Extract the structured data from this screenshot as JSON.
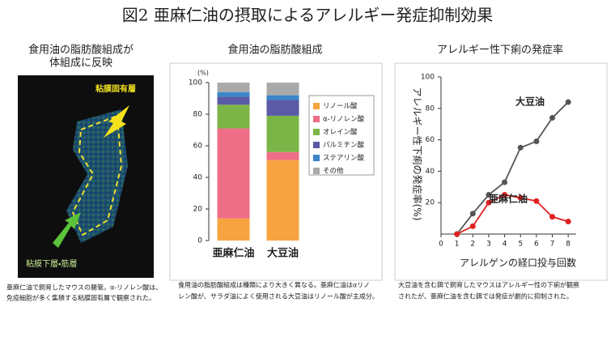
{
  "title": "図2 亜麻仁油の摂取によるアレルギー発症抑制効果",
  "photo_panel": {
    "heading": [
      "食用油の脂肪酸組成が",
      "体組成に反映"
    ],
    "label_upper": "粘膜固有層",
    "label_lower": "粘膜下層・筋層",
    "caption": [
      "亜麻仁油で飼育したマウスの腸管。α-リノレン酸は、",
      "免疫細胞が多く集積する粘膜固有層で観察された。"
    ]
  },
  "chart_data": [
    {
      "type": "bar",
      "stacked": true,
      "title": "食用油の脂肪酸組成",
      "y_unit": "(%)",
      "categories": [
        "亜麻仁油",
        "大豆油"
      ],
      "series": [
        {
          "name": "リノール酸",
          "color": "#f7a440",
          "values": [
            14,
            51
          ]
        },
        {
          "name": "α-リノレン酸",
          "color": "#ee6e88",
          "values": [
            57,
            5
          ]
        },
        {
          "name": "オレイン酸",
          "color": "#7bb547",
          "values": [
            15,
            23
          ]
        },
        {
          "name": "パルミチン酸",
          "color": "#5a5aa6",
          "values": [
            5,
            10
          ]
        },
        {
          "name": "ステアリン酸",
          "color": "#3a86c8",
          "values": [
            3,
            3
          ]
        },
        {
          "name": "その他",
          "color": "#a9a9a9",
          "values": [
            6,
            8
          ]
        }
      ],
      "ylim": [
        0,
        100
      ],
      "yticks": [
        0,
        20,
        40,
        60,
        80,
        100
      ],
      "caption": [
        "食用油の脂肪酸組成は種類により大きく異なる。亜麻仁油はαリノ",
        "レン酸が、サラダ油によく使用される大豆油はリノール酸が主成分。"
      ]
    },
    {
      "type": "line",
      "title": "アレルギー性下痢の発症率",
      "ylabel": "アレルギー性下痢の発症率(%)",
      "xlabel": "アレルゲンの経口投与回数",
      "x": [
        1,
        2,
        3,
        4,
        5,
        6,
        7,
        8
      ],
      "series": [
        {
          "name": "大豆油",
          "color": "#555555",
          "values": [
            0,
            13,
            25,
            33,
            55,
            59,
            74,
            84
          ]
        },
        {
          "name": "亜麻仁油",
          "color": "#e02222",
          "values": [
            0,
            5,
            20,
            25,
            23,
            21,
            11,
            8
          ]
        }
      ],
      "xlim": [
        0,
        8.5
      ],
      "xticks": [
        0,
        1,
        2,
        3,
        4,
        5,
        6,
        7,
        8
      ],
      "ylim": [
        0,
        100
      ],
      "yticks": [
        20,
        40,
        60,
        80,
        100
      ],
      "caption": [
        "大豆油を含む餌で飼育したマウスはアレルギー性の下痢が観察",
        "されたが、亜麻仁油を含む餌では発症が劇的に抑制された。"
      ]
    }
  ]
}
